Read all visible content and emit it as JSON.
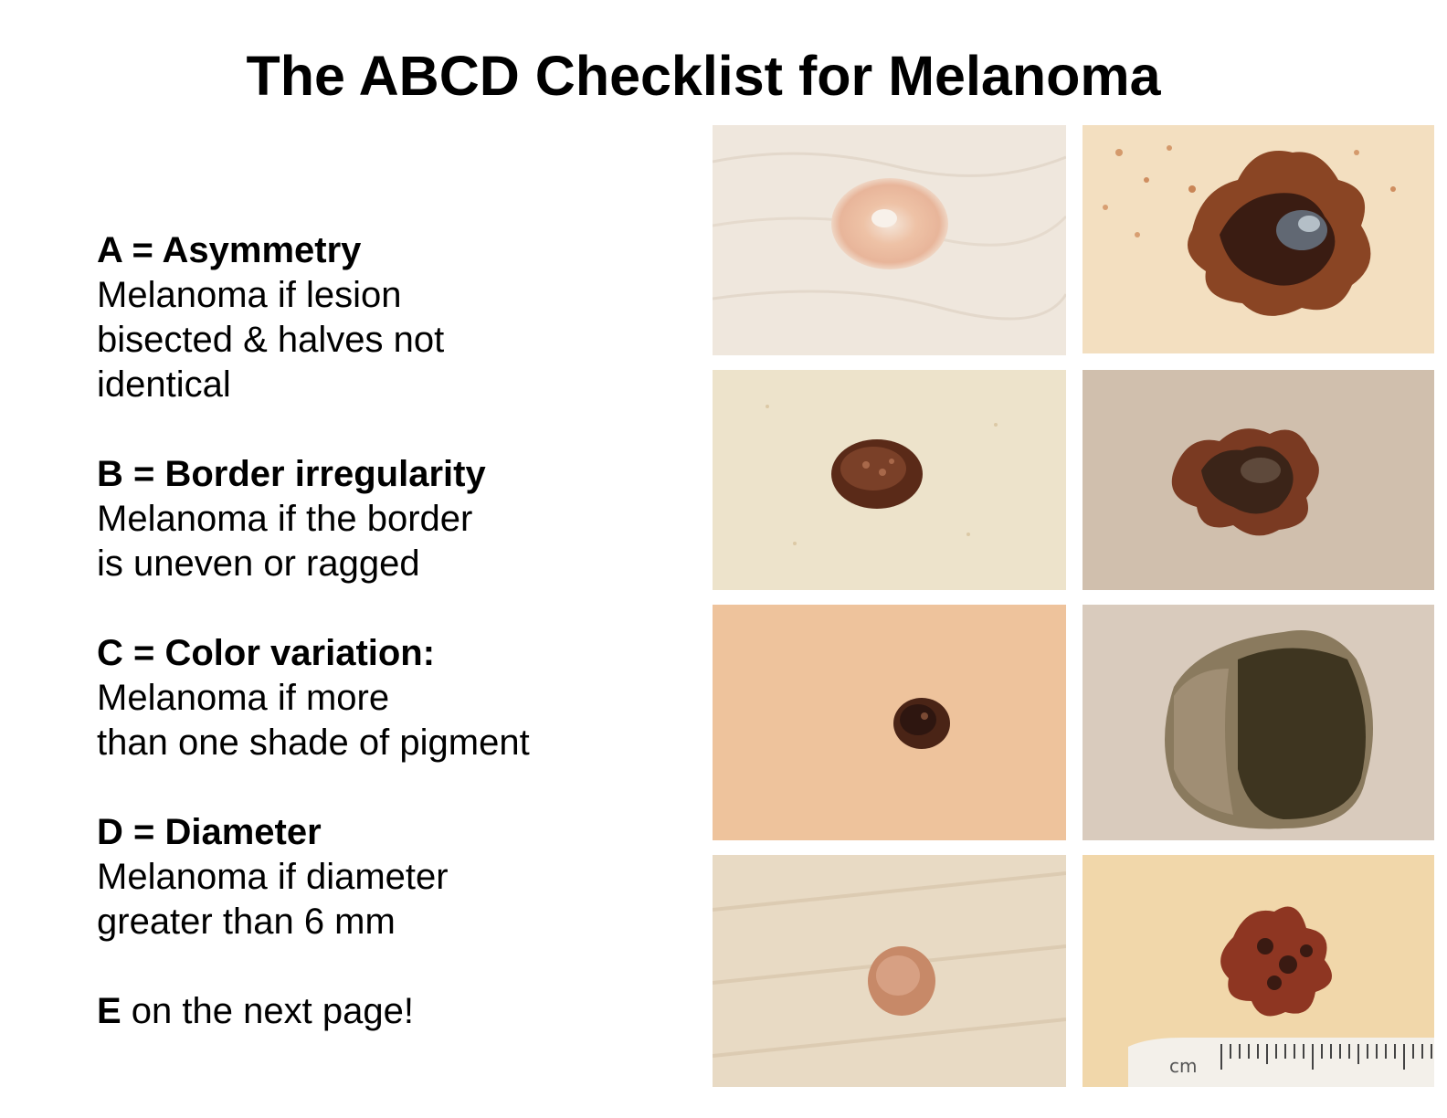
{
  "title": "The ABCD Checklist for Melanoma",
  "items": [
    {
      "heading": "A = Asymmetry",
      "lines": [
        "Melanoma if lesion",
        "bisected & halves not",
        "identical"
      ]
    },
    {
      "heading": "B = Border irregularity",
      "lines": [
        "Melanoma if the border",
        "is uneven or ragged"
      ]
    },
    {
      "heading": "C = Color variation:",
      "lines": [
        "Melanoma if more",
        "than one shade of pigment"
      ]
    },
    {
      "heading": "D = Diameter",
      "lines": [
        "Melanoma if diameter",
        "greater than 6 mm"
      ]
    }
  ],
  "footer": {
    "letter": "E",
    "text": " on the next page!"
  },
  "ruler_unit": "cm"
}
